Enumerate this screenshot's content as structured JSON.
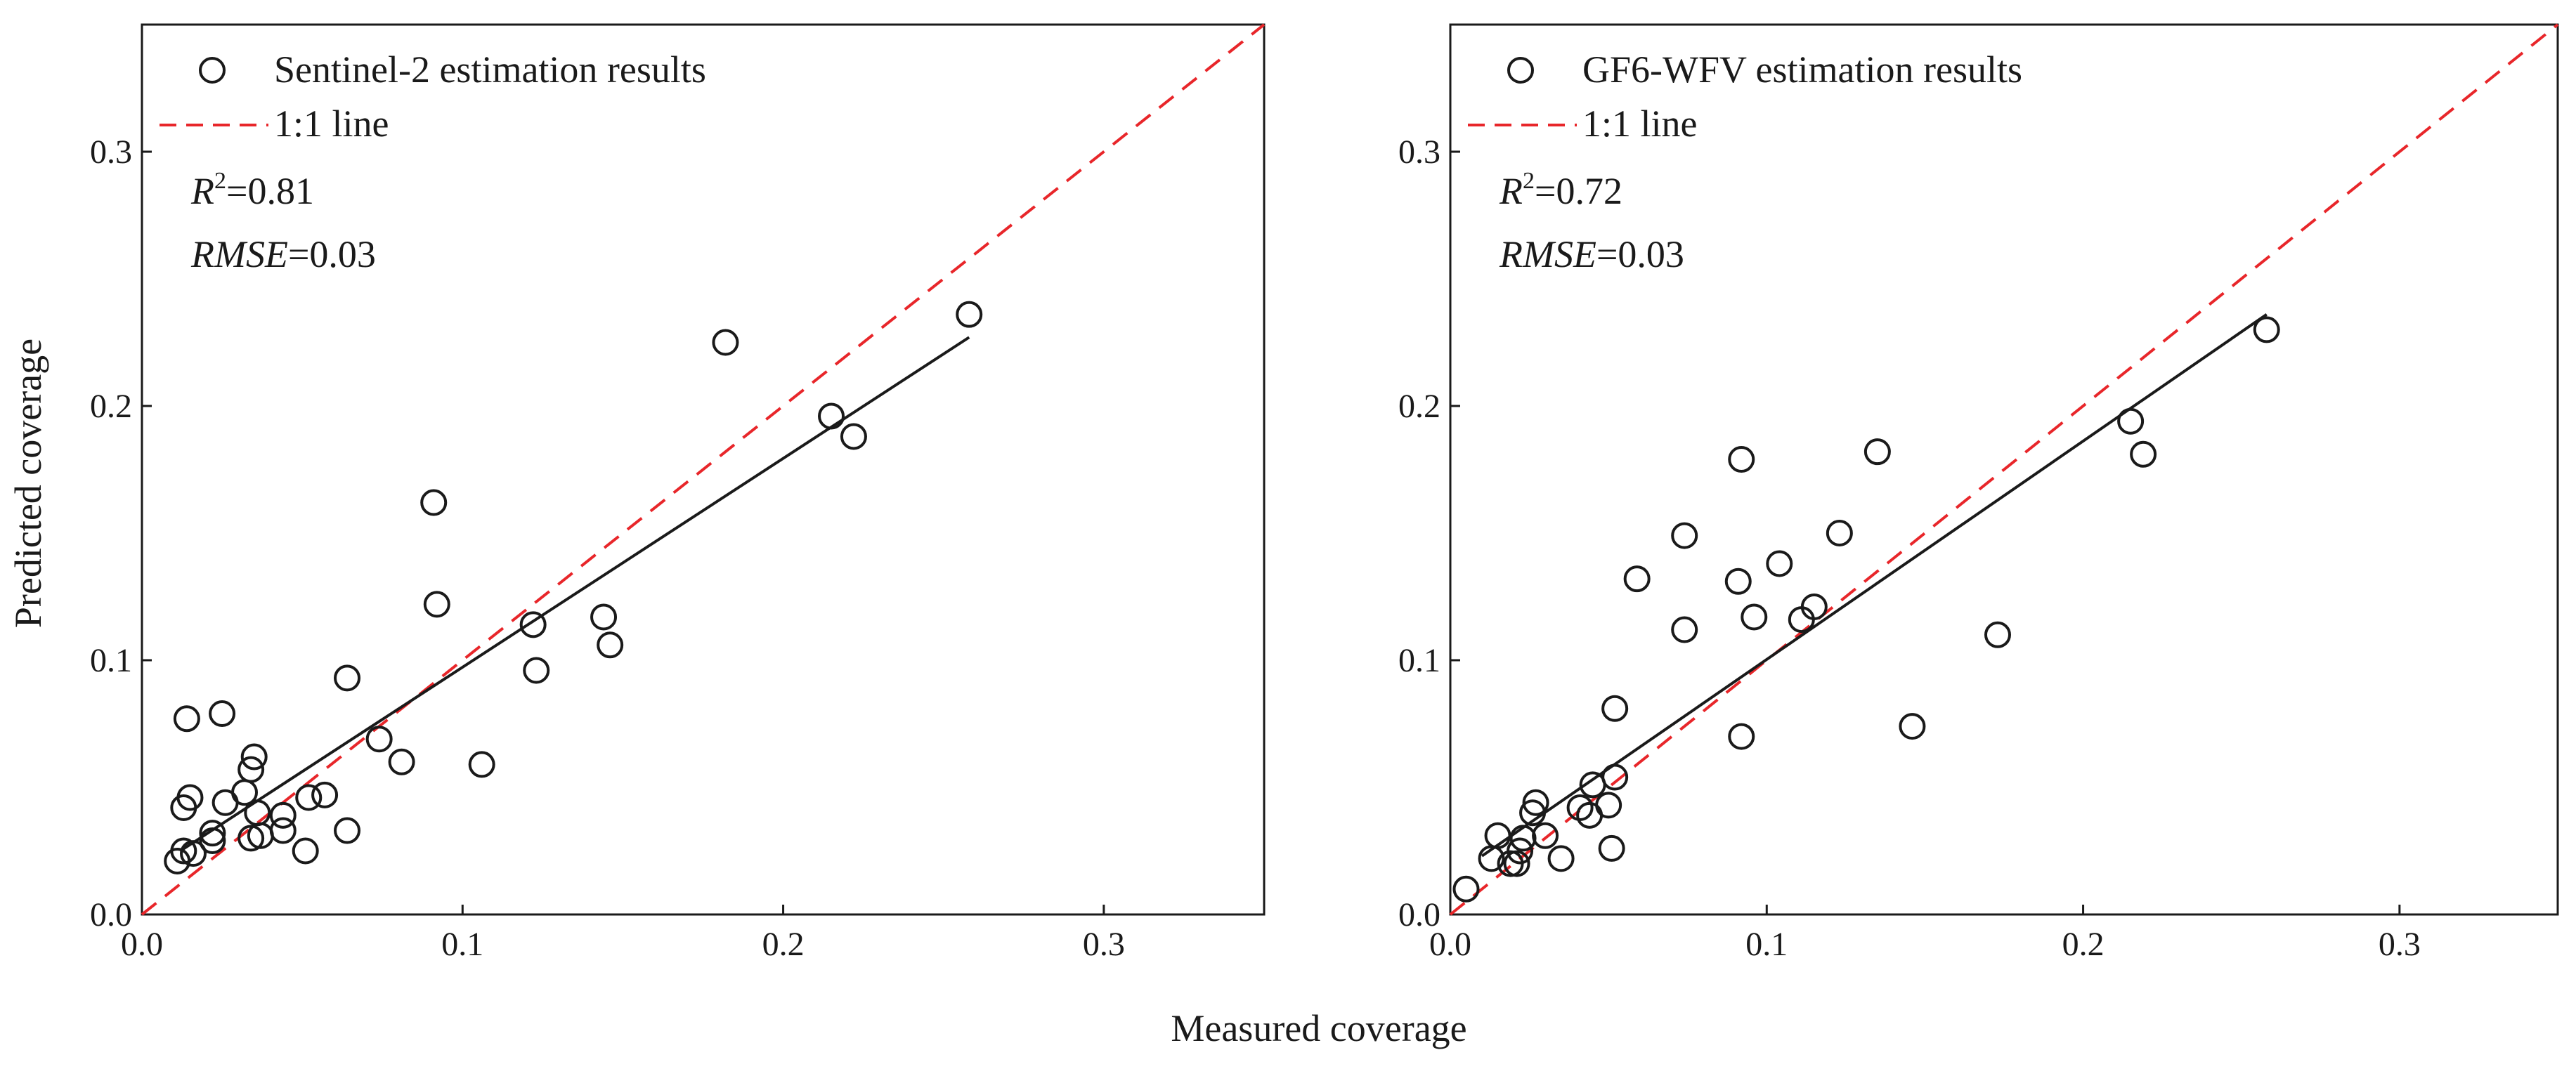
{
  "figure": {
    "ylabel": "Predicted coverage",
    "xlabel": "Measured coverage"
  },
  "colors": {
    "axis": "#1a1a1a",
    "fit_line": "#1a1a1a",
    "identity_line": "#e8262a",
    "marker_edge": "#1a1a1a"
  },
  "chart_data": [
    {
      "type": "scatter",
      "name": "sentinel",
      "legend": {
        "marker_label": "Sentinel-2 estimation results",
        "line_label": "1:1  line"
      },
      "stats": {
        "r2_symbol": "R",
        "r2_sup": "2",
        "r2_value": "=0.81",
        "rmse_symbol": "RMSE",
        "rmse_value": "=0.03"
      },
      "xlim": [
        0,
        0.35
      ],
      "ylim": [
        0,
        0.35
      ],
      "xticks": [
        0.0,
        0.1,
        0.2,
        0.3
      ],
      "yticks": [
        0.0,
        0.1,
        0.2,
        0.3
      ],
      "xtick_labels": [
        "0.0",
        "0.1",
        "0.2",
        "0.3"
      ],
      "ytick_labels": [
        "0.0",
        "0.1",
        "0.2",
        "0.3"
      ],
      "fit": {
        "x": [
          0.012,
          0.258
        ],
        "y": [
          0.025,
          0.227
        ]
      },
      "points": [
        {
          "x": 0.011,
          "y": 0.021
        },
        {
          "x": 0.013,
          "y": 0.025
        },
        {
          "x": 0.016,
          "y": 0.024
        },
        {
          "x": 0.013,
          "y": 0.042
        },
        {
          "x": 0.015,
          "y": 0.046
        },
        {
          "x": 0.014,
          "y": 0.077
        },
        {
          "x": 0.022,
          "y": 0.029
        },
        {
          "x": 0.022,
          "y": 0.032
        },
        {
          "x": 0.026,
          "y": 0.044
        },
        {
          "x": 0.025,
          "y": 0.079
        },
        {
          "x": 0.032,
          "y": 0.048
        },
        {
          "x": 0.034,
          "y": 0.057
        },
        {
          "x": 0.035,
          "y": 0.062
        },
        {
          "x": 0.034,
          "y": 0.03
        },
        {
          "x": 0.037,
          "y": 0.031
        },
        {
          "x": 0.036,
          "y": 0.04
        },
        {
          "x": 0.044,
          "y": 0.033
        },
        {
          "x": 0.044,
          "y": 0.039
        },
        {
          "x": 0.051,
          "y": 0.025
        },
        {
          "x": 0.052,
          "y": 0.046
        },
        {
          "x": 0.057,
          "y": 0.047
        },
        {
          "x": 0.064,
          "y": 0.033
        },
        {
          "x": 0.064,
          "y": 0.093
        },
        {
          "x": 0.074,
          "y": 0.069
        },
        {
          "x": 0.081,
          "y": 0.06
        },
        {
          "x": 0.091,
          "y": 0.162
        },
        {
          "x": 0.092,
          "y": 0.122
        },
        {
          "x": 0.106,
          "y": 0.059
        },
        {
          "x": 0.122,
          "y": 0.114
        },
        {
          "x": 0.123,
          "y": 0.096
        },
        {
          "x": 0.144,
          "y": 0.117
        },
        {
          "x": 0.146,
          "y": 0.106
        },
        {
          "x": 0.182,
          "y": 0.225
        },
        {
          "x": 0.215,
          "y": 0.196
        },
        {
          "x": 0.222,
          "y": 0.188
        },
        {
          "x": 0.258,
          "y": 0.236
        }
      ]
    },
    {
      "type": "scatter",
      "name": "gf6",
      "legend": {
        "marker_label": "GF6-WFV  estimation results",
        "line_label": "1:1  line"
      },
      "stats": {
        "r2_symbol": "R",
        "r2_sup": "2",
        "r2_value": "=0.72",
        "rmse_symbol": "RMSE",
        "rmse_value": "=0.03"
      },
      "xlim": [
        0,
        0.35
      ],
      "ylim": [
        0,
        0.35
      ],
      "xticks": [
        0.0,
        0.1,
        0.2,
        0.3
      ],
      "yticks": [
        0.0,
        0.1,
        0.2,
        0.3
      ],
      "xtick_labels": [
        "0.0",
        "0.1",
        "0.2",
        "0.3"
      ],
      "ytick_labels": [
        "0.0",
        "0.1",
        "0.2",
        "0.3"
      ],
      "fit": {
        "x": [
          0.01,
          0.258
        ],
        "y": [
          0.023,
          0.236
        ]
      },
      "points": [
        {
          "x": 0.005,
          "y": 0.01
        },
        {
          "x": 0.013,
          "y": 0.022
        },
        {
          "x": 0.015,
          "y": 0.031
        },
        {
          "x": 0.019,
          "y": 0.02
        },
        {
          "x": 0.021,
          "y": 0.02
        },
        {
          "x": 0.022,
          "y": 0.025
        },
        {
          "x": 0.023,
          "y": 0.03
        },
        {
          "x": 0.026,
          "y": 0.04
        },
        {
          "x": 0.027,
          "y": 0.044
        },
        {
          "x": 0.03,
          "y": 0.031
        },
        {
          "x": 0.035,
          "y": 0.022
        },
        {
          "x": 0.041,
          "y": 0.042
        },
        {
          "x": 0.044,
          "y": 0.039
        },
        {
          "x": 0.045,
          "y": 0.051
        },
        {
          "x": 0.05,
          "y": 0.043
        },
        {
          "x": 0.051,
          "y": 0.026
        },
        {
          "x": 0.052,
          "y": 0.054
        },
        {
          "x": 0.052,
          "y": 0.081
        },
        {
          "x": 0.059,
          "y": 0.132
        },
        {
          "x": 0.074,
          "y": 0.112
        },
        {
          "x": 0.074,
          "y": 0.149
        },
        {
          "x": 0.091,
          "y": 0.131
        },
        {
          "x": 0.092,
          "y": 0.07
        },
        {
          "x": 0.092,
          "y": 0.179
        },
        {
          "x": 0.096,
          "y": 0.117
        },
        {
          "x": 0.104,
          "y": 0.138
        },
        {
          "x": 0.111,
          "y": 0.116
        },
        {
          "x": 0.115,
          "y": 0.121
        },
        {
          "x": 0.123,
          "y": 0.15
        },
        {
          "x": 0.135,
          "y": 0.182
        },
        {
          "x": 0.146,
          "y": 0.074
        },
        {
          "x": 0.173,
          "y": 0.11
        },
        {
          "x": 0.215,
          "y": 0.194
        },
        {
          "x": 0.219,
          "y": 0.181
        },
        {
          "x": 0.258,
          "y": 0.23
        }
      ]
    }
  ]
}
